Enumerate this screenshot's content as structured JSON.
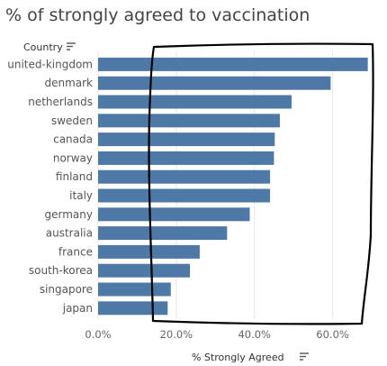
{
  "chart_data": {
    "type": "bar",
    "orientation": "horizontal",
    "title": "% of strongly agreed to vaccination",
    "row_header": "Country",
    "xlabel": "% Strongly Agreed",
    "categories": [
      "united-kingdom",
      "denmark",
      "netherlands",
      "sweden",
      "canada",
      "norway",
      "finland",
      "italy",
      "germany",
      "australia",
      "france",
      "south-korea",
      "singapore",
      "japan"
    ],
    "values": [
      69.0,
      59.5,
      49.5,
      46.5,
      45.2,
      45.0,
      44.0,
      44.0,
      38.8,
      33.0,
      26.0,
      23.5,
      18.6,
      17.8
    ],
    "xlim": [
      0,
      70
    ],
    "xticks": [
      "0.0%",
      "20.0%",
      "40.0%",
      "60.0%"
    ],
    "xtick_values": [
      0,
      20,
      40,
      60
    ],
    "grid": true,
    "bar_color": "#4e79a7",
    "annotation": "hand-drawn black outline around the right portion of the bars",
    "annotation_color": "#000000",
    "sort_icon": "sort-descending-icon"
  }
}
